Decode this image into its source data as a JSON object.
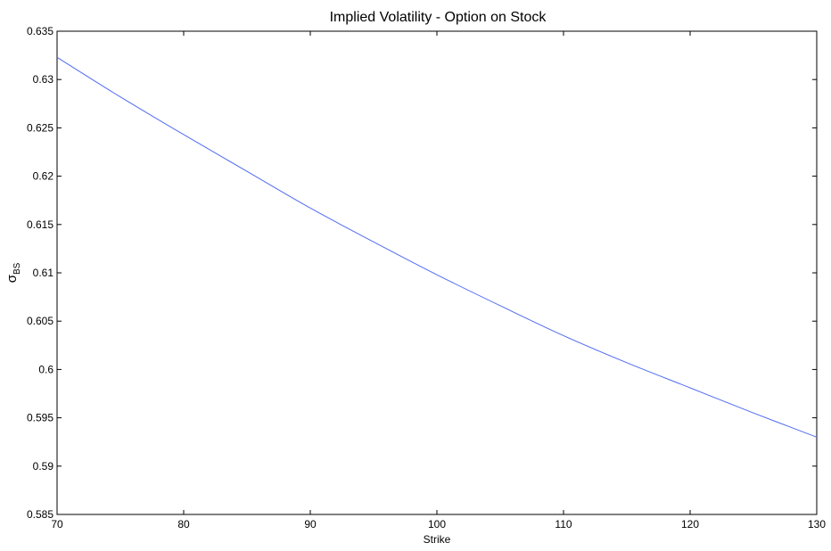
{
  "chart_data": {
    "type": "line",
    "title": "Implied Volatility - Option on Stock",
    "xlabel": "Strike",
    "ylabel": "σ",
    "ylabel_subscript": "BS",
    "xlim": [
      70,
      130
    ],
    "ylim": [
      0.585,
      0.635
    ],
    "x_ticks": [
      70,
      80,
      90,
      100,
      110,
      120,
      130
    ],
    "x_tick_labels": [
      "70",
      "80",
      "90",
      "100",
      "110",
      "120",
      "130"
    ],
    "y_ticks": [
      0.585,
      0.59,
      0.595,
      0.6,
      0.605,
      0.61,
      0.615,
      0.62,
      0.625,
      0.63,
      0.635
    ],
    "y_tick_labels": [
      "0.585",
      "0.59",
      "0.595",
      "0.6",
      "0.605",
      "0.61",
      "0.615",
      "0.62",
      "0.625",
      "0.63",
      "0.635"
    ],
    "grid": false,
    "series": [
      {
        "color": "#4f6bf0",
        "x": [
          70,
          75,
          80,
          85,
          90,
          95,
          100,
          105,
          110,
          115,
          120,
          125,
          130
        ],
        "y": [
          0.6323,
          0.6282,
          0.6243,
          0.6205,
          0.6167,
          0.6132,
          0.6098,
          0.6066,
          0.6035,
          0.6007,
          0.5981,
          0.5955,
          0.593
        ]
      }
    ]
  }
}
